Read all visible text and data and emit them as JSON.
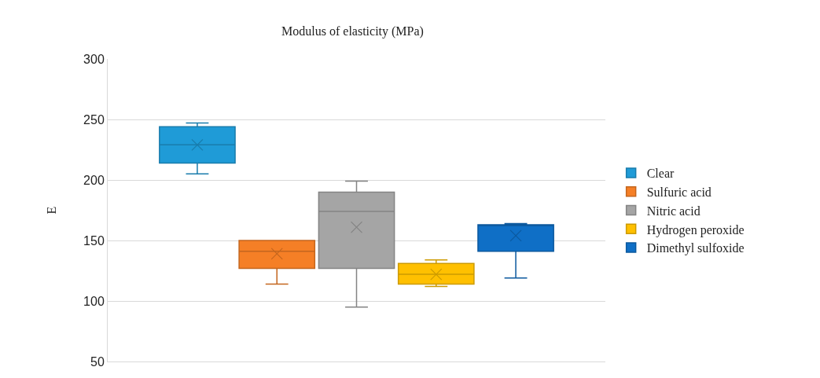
{
  "chart_data": {
    "type": "box",
    "title": "Modulus of elasticity (MPa)",
    "ylabel": "E",
    "categories": [
      null
    ],
    "series": [
      {
        "name": "Clear",
        "color": "#1f9bd7",
        "boxes": [
          {
            "low": 205,
            "q1": 214,
            "median": 229,
            "q3": 244,
            "high": 247,
            "mean": 229
          }
        ]
      },
      {
        "name": "Sulfuric acid",
        "color": "#f57f26",
        "boxes": [
          {
            "low": 114,
            "q1": 127,
            "median": 141,
            "q3": 150,
            "high": 150,
            "mean": 139
          }
        ]
      },
      {
        "name": "Nitric acid",
        "color": "#a5a5a5",
        "boxes": [
          {
            "low": 95,
            "q1": 127,
            "median": 174,
            "q3": 190,
            "high": 199,
            "mean": 161
          }
        ]
      },
      {
        "name": "Hydrogen peroxide",
        "color": "#ffc000",
        "boxes": [
          {
            "low": 112,
            "q1": 114,
            "median": 122,
            "q3": 131,
            "high": 134,
            "mean": 122
          }
        ]
      },
      {
        "name": "Dimethyl sulfoxide",
        "color": "#0f6fc6",
        "boxes": [
          {
            "low": 119,
            "q1": 141,
            "median": 163,
            "q3": 163,
            "high": 164,
            "mean": 154
          }
        ]
      }
    ],
    "ylim": [
      50,
      300
    ],
    "yticks": [
      50,
      100,
      150,
      200,
      250,
      300
    ],
    "grid": "y",
    "legend": "right",
    "marker": "cross"
  }
}
